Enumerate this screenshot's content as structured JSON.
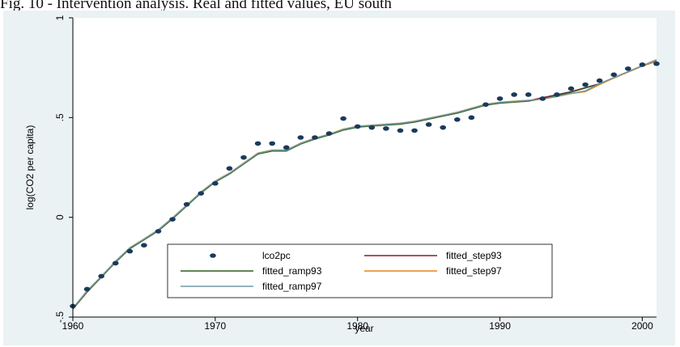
{
  "caption": "Fig. 10 - Intervention analysis. Real and fitted values, EU south",
  "chart_data": {
    "type": "line",
    "title": "Fig. 10 - Intervention analysis. Real and fitted values, EU south",
    "xlabel": "year",
    "ylabel": "log(CO2 per capita)",
    "xlim": [
      1960,
      2001
    ],
    "ylim": [
      -0.5,
      1
    ],
    "xticks": [
      1960,
      1970,
      1980,
      1990,
      2000
    ],
    "yticks": [
      -0.5,
      0,
      0.5,
      1
    ],
    "ytick_labels": [
      "-.5",
      "0",
      ".5",
      "1"
    ],
    "grid": false,
    "legend_position": "bottom-center",
    "x": [
      1960,
      1961,
      1962,
      1963,
      1964,
      1965,
      1966,
      1967,
      1968,
      1969,
      1970,
      1971,
      1972,
      1973,
      1974,
      1975,
      1976,
      1977,
      1978,
      1979,
      1980,
      1981,
      1982,
      1983,
      1984,
      1985,
      1986,
      1987,
      1988,
      1989,
      1990,
      1991,
      1992,
      1993,
      1994,
      1995,
      1996,
      1997,
      1998,
      1999,
      2000,
      2001
    ],
    "series": [
      {
        "name": "lco2pc",
        "style": "marker",
        "color": "#1a3a5c",
        "values": [
          -0.445,
          -0.36,
          -0.295,
          -0.23,
          -0.17,
          -0.14,
          -0.07,
          -0.01,
          0.065,
          0.12,
          0.17,
          0.245,
          0.3,
          0.37,
          0.37,
          0.35,
          0.4,
          0.4,
          0.42,
          0.495,
          0.455,
          0.45,
          0.445,
          0.435,
          0.435,
          0.465,
          0.45,
          0.49,
          0.5,
          0.565,
          0.595,
          0.615,
          0.615,
          0.595,
          0.615,
          0.645,
          0.665,
          0.685,
          0.715,
          0.745,
          0.765,
          0.77
        ]
      },
      {
        "name": "fitted_step93",
        "style": "line",
        "color": "#8b1a2b",
        "values": [
          -0.46,
          -0.37,
          -0.3,
          -0.22,
          -0.155,
          -0.11,
          -0.065,
          -0.005,
          0.06,
          0.125,
          0.18,
          0.22,
          0.27,
          0.32,
          0.335,
          0.335,
          0.37,
          0.395,
          0.415,
          0.44,
          0.455,
          0.46,
          0.465,
          0.47,
          0.48,
          0.495,
          0.51,
          0.525,
          0.545,
          0.565,
          0.575,
          0.58,
          0.585,
          0.6,
          0.615,
          0.63,
          0.65,
          0.67,
          0.7,
          0.73,
          0.76,
          0.785
        ]
      },
      {
        "name": "fitted_ramp93",
        "style": "line",
        "color": "#2e5e1f",
        "values": [
          -0.46,
          -0.375,
          -0.3,
          -0.225,
          -0.158,
          -0.113,
          -0.068,
          -0.008,
          0.057,
          0.122,
          0.177,
          0.217,
          0.267,
          0.317,
          0.332,
          0.332,
          0.367,
          0.392,
          0.412,
          0.437,
          0.452,
          0.457,
          0.462,
          0.467,
          0.477,
          0.492,
          0.507,
          0.522,
          0.542,
          0.562,
          0.572,
          0.577,
          0.582,
          0.595,
          0.61,
          0.627,
          0.648,
          0.668,
          0.698,
          0.728,
          0.758,
          0.782
        ]
      },
      {
        "name": "fitted_step97",
        "style": "line",
        "color": "#e8821a",
        "values": [
          -0.455,
          -0.37,
          -0.295,
          -0.22,
          -0.152,
          -0.108,
          -0.062,
          -0.002,
          0.062,
          0.128,
          0.182,
          0.222,
          0.272,
          0.322,
          0.337,
          0.337,
          0.372,
          0.397,
          0.417,
          0.442,
          0.457,
          0.462,
          0.467,
          0.472,
          0.482,
          0.497,
          0.512,
          0.527,
          0.547,
          0.567,
          0.577,
          0.582,
          0.587,
          0.592,
          0.605,
          0.62,
          0.63,
          0.665,
          0.698,
          0.728,
          0.758,
          0.782
        ]
      },
      {
        "name": "fitted_ramp97",
        "style": "line",
        "color": "#6f9aa8",
        "values": [
          -0.455,
          -0.368,
          -0.296,
          -0.221,
          -0.153,
          -0.109,
          -0.063,
          -0.003,
          0.061,
          0.127,
          0.181,
          0.221,
          0.271,
          0.321,
          0.336,
          0.336,
          0.371,
          0.396,
          0.416,
          0.441,
          0.456,
          0.461,
          0.466,
          0.471,
          0.481,
          0.496,
          0.511,
          0.526,
          0.546,
          0.566,
          0.576,
          0.581,
          0.586,
          0.593,
          0.606,
          0.621,
          0.634,
          0.67,
          0.7,
          0.73,
          0.76,
          0.79
        ]
      }
    ]
  }
}
